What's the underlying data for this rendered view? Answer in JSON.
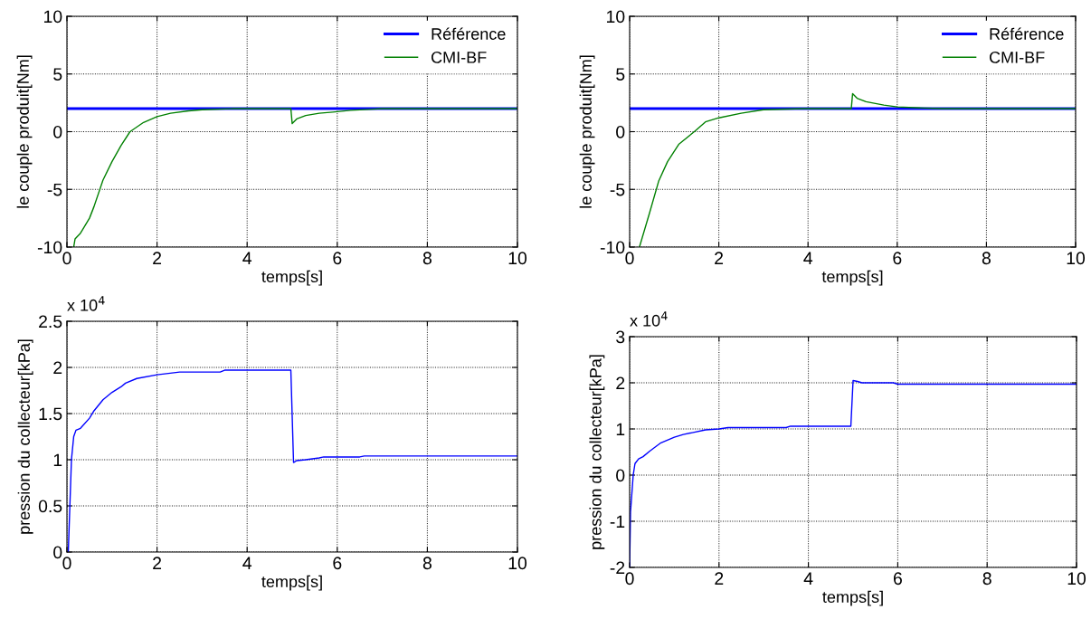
{
  "chart_data": [
    {
      "type": "line",
      "xlabel": "temps[s]",
      "ylabel": "le couple produit[Nm]",
      "xlim": [
        0,
        10
      ],
      "xticks": [
        0,
        2,
        4,
        6,
        8,
        10
      ],
      "ylim": [
        -10,
        10
      ],
      "yticks": [
        -10,
        -5,
        0,
        5,
        10
      ],
      "grid": true,
      "legend": "top right",
      "series": [
        {
          "name": "Référence",
          "color": "#0000ff",
          "x": [
            0,
            10
          ],
          "values": [
            2,
            2
          ]
        },
        {
          "name": "CMI-BF",
          "color": "#008000",
          "x": [
            0.15,
            0.18,
            0.3,
            0.5,
            0.6,
            0.8,
            1.0,
            1.2,
            1.4,
            1.7,
            2.0,
            2.3,
            2.7,
            3.0,
            3.7,
            4.97,
            5.0,
            5.1,
            5.3,
            5.6,
            5.9,
            6.3,
            6.8,
            7.0,
            10
          ],
          "values": [
            -10,
            -9.3,
            -8.8,
            -7.5,
            -6.5,
            -4.2,
            -2.6,
            -1.2,
            0,
            0.8,
            1.3,
            1.6,
            1.8,
            1.9,
            2.0,
            2.0,
            0.7,
            1.1,
            1.4,
            1.6,
            1.7,
            1.85,
            1.95,
            2.0,
            2.0
          ]
        }
      ]
    },
    {
      "type": "line",
      "xlabel": "temps[s]",
      "ylabel": "le couple produit[Nm]",
      "xlim": [
        0,
        10
      ],
      "xticks": [
        0,
        2,
        4,
        6,
        8,
        10
      ],
      "ylim": [
        -10,
        10
      ],
      "yticks": [
        -10,
        -5,
        0,
        5,
        10
      ],
      "grid": true,
      "legend": "top right",
      "series": [
        {
          "name": "Référence",
          "color": "#0000ff",
          "x": [
            0,
            10
          ],
          "values": [
            2,
            2
          ]
        },
        {
          "name": "CMI-BF",
          "color": "#008000",
          "x": [
            0.22,
            0.45,
            0.65,
            0.85,
            1.1,
            1.45,
            1.7,
            2.0,
            2.5,
            3.0,
            3.9,
            4.97,
            5.0,
            5.1,
            5.3,
            5.7,
            6.0,
            6.6,
            7.0,
            10
          ],
          "values": [
            -10,
            -7.0,
            -4.3,
            -2.6,
            -1.1,
            0,
            0.85,
            1.2,
            1.6,
            1.9,
            2.0,
            2.0,
            3.3,
            2.9,
            2.6,
            2.3,
            2.15,
            2.05,
            2.0,
            2.0
          ]
        }
      ]
    },
    {
      "type": "line",
      "xlabel": "temps[s]",
      "ylabel": "pression du collecteur[kPa]",
      "annotations": [
        "x 10$^{4}$"
      ],
      "xlim": [
        0,
        10
      ],
      "xticks": [
        0,
        2,
        4,
        6,
        8,
        10
      ],
      "ylim": [
        0,
        2.5
      ],
      "yticks": [
        0,
        0.5,
        1,
        1.5,
        2,
        2.5
      ],
      "grid": true,
      "series": [
        {
          "color": "#0000ff",
          "x": [
            0,
            0.03,
            0.1,
            0.15,
            0.2,
            0.3,
            0.5,
            0.6,
            0.8,
            1.0,
            1.2,
            1.3,
            1.55,
            2.0,
            2.5,
            3.4,
            3.5,
            4.97,
            5.03,
            5.1,
            5.3,
            5.6,
            5.7,
            6.5,
            6.6,
            10
          ],
          "values": [
            0,
            0,
            1.0,
            1.25,
            1.32,
            1.34,
            1.45,
            1.53,
            1.65,
            1.73,
            1.79,
            1.83,
            1.88,
            1.92,
            1.95,
            1.95,
            1.97,
            1.97,
            0.97,
            0.99,
            1.0,
            1.02,
            1.03,
            1.03,
            1.04,
            1.04
          ]
        }
      ]
    },
    {
      "type": "line",
      "xlabel": "temps[s]",
      "ylabel": "pression du collecteur[kPa]",
      "annotations": [
        "x 10$^{4}$"
      ],
      "xlim": [
        0,
        10
      ],
      "xticks": [
        0,
        2,
        4,
        6,
        8,
        10
      ],
      "ylim": [
        -2,
        3
      ],
      "yticks": [
        -2,
        -1,
        0,
        1,
        2,
        3
      ],
      "grid": true,
      "series": [
        {
          "color": "#0000ff",
          "x": [
            0,
            0.02,
            0.08,
            0.12,
            0.2,
            0.3,
            0.45,
            0.7,
            1.0,
            1.2,
            1.4,
            1.7,
            2.0,
            2.2,
            3.5,
            3.6,
            4.95,
            5.0,
            5.1,
            5.2,
            5.9,
            6.0,
            10
          ],
          "values": [
            -2,
            -0.8,
            0,
            0.25,
            0.35,
            0.4,
            0.52,
            0.7,
            0.82,
            0.88,
            0.92,
            0.98,
            1.0,
            1.03,
            1.03,
            1.06,
            1.06,
            2.05,
            2.03,
            2.0,
            2.0,
            1.97,
            1.97
          ]
        }
      ]
    }
  ]
}
